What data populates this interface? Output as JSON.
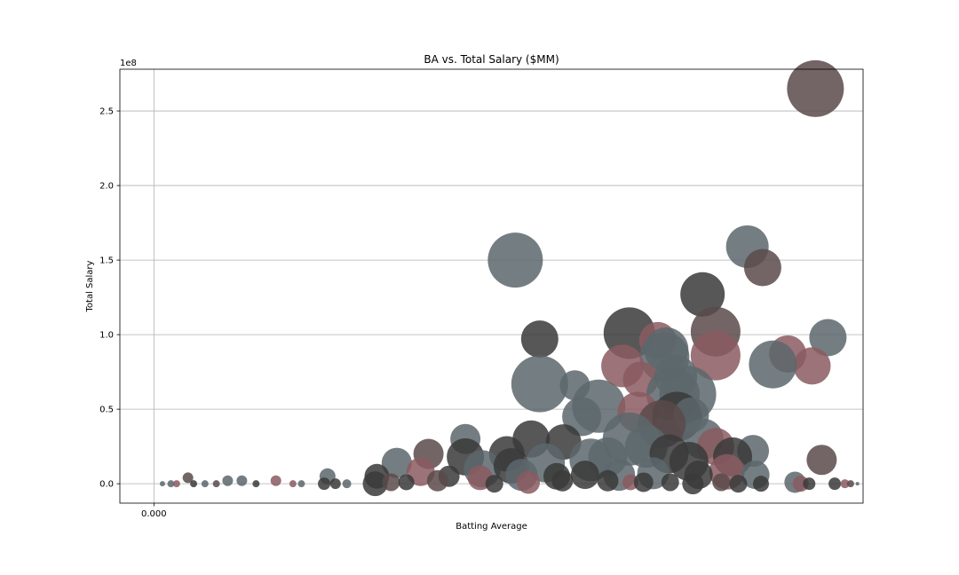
{
  "chart_data": {
    "type": "scatter",
    "title": "BA vs. Total Salary ($MM)",
    "xlabel": "Batting Average",
    "ylabel": "Total Salary",
    "y_offset_label": "1e8",
    "xlim": [
      -0.06,
      1.25
    ],
    "ylim": [
      -13000000,
      278000000
    ],
    "xticks": [
      0.0
    ],
    "xtick_labels": [
      "0.000"
    ],
    "yticks": [
      0,
      50000000,
      100000000,
      150000000,
      200000000,
      250000000
    ],
    "ytick_labels": [
      "0.0",
      "0.5",
      "1.0",
      "1.5",
      "2.0",
      "2.5"
    ],
    "grid": true,
    "palette": {
      "gray": "#5c676c",
      "dark": "#3a3a3a",
      "brown": "#5a4a4a",
      "rose": "#8a5a60"
    },
    "points": [
      {
        "x": 1.166,
        "y": 265000000,
        "s": 32,
        "c": "brown"
      },
      {
        "x": 0.637,
        "y": 150000000,
        "s": 31,
        "c": "gray"
      },
      {
        "x": 1.046,
        "y": 159000000,
        "s": 24,
        "c": "gray"
      },
      {
        "x": 1.073,
        "y": 145000000,
        "s": 21,
        "c": "brown"
      },
      {
        "x": 0.967,
        "y": 127000000,
        "s": 25,
        "c": "dark"
      },
      {
        "x": 0.68,
        "y": 97000000,
        "s": 21,
        "c": "dark"
      },
      {
        "x": 0.838,
        "y": 101000000,
        "s": 29,
        "c": "dark"
      },
      {
        "x": 0.888,
        "y": 96000000,
        "s": 21,
        "c": "rose"
      },
      {
        "x": 0.9,
        "y": 85000000,
        "s": 28,
        "c": "gray"
      },
      {
        "x": 0.903,
        "y": 90000000,
        "s": 25,
        "c": "gray"
      },
      {
        "x": 0.99,
        "y": 102000000,
        "s": 28,
        "c": "brown"
      },
      {
        "x": 0.99,
        "y": 86000000,
        "s": 28,
        "c": "rose"
      },
      {
        "x": 1.188,
        "y": 98000000,
        "s": 21,
        "c": "gray"
      },
      {
        "x": 1.117,
        "y": 87000000,
        "s": 21,
        "c": "rose"
      },
      {
        "x": 1.16,
        "y": 79000000,
        "s": 21,
        "c": "rose"
      },
      {
        "x": 1.091,
        "y": 80000000,
        "s": 27,
        "c": "gray"
      },
      {
        "x": 0.68,
        "y": 67000000,
        "s": 32,
        "c": "gray"
      },
      {
        "x": 0.742,
        "y": 66000000,
        "s": 17,
        "c": "gray"
      },
      {
        "x": 0.826,
        "y": 79000000,
        "s": 24,
        "c": "rose"
      },
      {
        "x": 0.858,
        "y": 70000000,
        "s": 20,
        "c": "rose"
      },
      {
        "x": 0.92,
        "y": 72000000,
        "s": 24,
        "c": "gray"
      },
      {
        "x": 0.915,
        "y": 60000000,
        "s": 30,
        "c": "gray"
      },
      {
        "x": 0.941,
        "y": 60000000,
        "s": 32,
        "c": "gray"
      },
      {
        "x": 0.784,
        "y": 52000000,
        "s": 30,
        "c": "gray"
      },
      {
        "x": 0.754,
        "y": 45000000,
        "s": 22,
        "c": "gray"
      },
      {
        "x": 0.853,
        "y": 48000000,
        "s": 23,
        "c": "rose"
      },
      {
        "x": 0.922,
        "y": 45000000,
        "s": 28,
        "c": "dark"
      },
      {
        "x": 0.947,
        "y": 46000000,
        "s": 20,
        "c": "gray"
      },
      {
        "x": 0.895,
        "y": 40000000,
        "s": 27,
        "c": "brown"
      },
      {
        "x": 0.838,
        "y": 30000000,
        "s": 30,
        "c": "gray"
      },
      {
        "x": 0.868,
        "y": 25000000,
        "s": 24,
        "c": "gray"
      },
      {
        "x": 0.968,
        "y": 30000000,
        "s": 23,
        "c": "gray"
      },
      {
        "x": 0.908,
        "y": 20000000,
        "s": 22,
        "c": "dark"
      },
      {
        "x": 0.99,
        "y": 25000000,
        "s": 21,
        "c": "rose"
      },
      {
        "x": 1.056,
        "y": 22000000,
        "s": 18,
        "c": "gray"
      },
      {
        "x": 1.177,
        "y": 16000000,
        "s": 17,
        "c": "brown"
      },
      {
        "x": 0.665,
        "y": 30000000,
        "s": 21,
        "c": "dark"
      },
      {
        "x": 0.722,
        "y": 28000000,
        "s": 20,
        "c": "dark"
      },
      {
        "x": 0.549,
        "y": 30000000,
        "s": 17,
        "c": "gray"
      },
      {
        "x": 0.549,
        "y": 18000000,
        "s": 21,
        "c": "dark"
      },
      {
        "x": 0.622,
        "y": 20000000,
        "s": 20,
        "c": "dark"
      },
      {
        "x": 0.484,
        "y": 20000000,
        "s": 17,
        "c": "brown"
      },
      {
        "x": 0.428,
        "y": 14000000,
        "s": 17,
        "c": "gray"
      },
      {
        "x": 0.47,
        "y": 8000000,
        "s": 16,
        "c": "rose"
      },
      {
        "x": 0.579,
        "y": 10000000,
        "s": 21,
        "c": "gray"
      },
      {
        "x": 0.63,
        "y": 12000000,
        "s": 20,
        "c": "dark"
      },
      {
        "x": 0.69,
        "y": 14000000,
        "s": 22,
        "c": "gray"
      },
      {
        "x": 0.77,
        "y": 16000000,
        "s": 24,
        "c": "gray"
      },
      {
        "x": 0.8,
        "y": 18000000,
        "s": 22,
        "c": "gray"
      },
      {
        "x": 0.943,
        "y": 15000000,
        "s": 22,
        "c": "dark"
      },
      {
        "x": 1.02,
        "y": 18000000,
        "s": 22,
        "c": "dark"
      },
      {
        "x": 1.01,
        "y": 8000000,
        "s": 20,
        "c": "rose"
      },
      {
        "x": 1.06,
        "y": 6000000,
        "s": 16,
        "c": "gray"
      },
      {
        "x": 0.648,
        "y": 6000000,
        "s": 18,
        "c": "gray"
      },
      {
        "x": 0.71,
        "y": 5000000,
        "s": 15,
        "c": "dark"
      },
      {
        "x": 0.76,
        "y": 6000000,
        "s": 16,
        "c": "dark"
      },
      {
        "x": 0.82,
        "y": 6000000,
        "s": 18,
        "c": "gray"
      },
      {
        "x": 0.88,
        "y": 7000000,
        "s": 18,
        "c": "gray"
      },
      {
        "x": 0.96,
        "y": 6000000,
        "s": 16,
        "c": "dark"
      },
      {
        "x": 0.393,
        "y": 5000000,
        "s": 14,
        "c": "dark"
      },
      {
        "x": 0.52,
        "y": 5000000,
        "s": 12,
        "c": "dark"
      },
      {
        "x": 0.575,
        "y": 4000000,
        "s": 14,
        "c": "rose"
      },
      {
        "x": 0.5,
        "y": 2000000,
        "s": 12,
        "c": "brown"
      },
      {
        "x": 0.39,
        "y": 0,
        "s": 14,
        "c": "dark"
      },
      {
        "x": 0.418,
        "y": 1000000,
        "s": 10,
        "c": "brown"
      },
      {
        "x": 0.445,
        "y": 1000000,
        "s": 9,
        "c": "dark"
      },
      {
        "x": 0.6,
        "y": 0,
        "s": 10,
        "c": "dark"
      },
      {
        "x": 0.66,
        "y": 1000000,
        "s": 13,
        "c": "rose"
      },
      {
        "x": 0.72,
        "y": 2000000,
        "s": 12,
        "c": "dark"
      },
      {
        "x": 0.8,
        "y": 2000000,
        "s": 12,
        "c": "dark"
      },
      {
        "x": 0.84,
        "y": 1000000,
        "s": 9,
        "c": "rose"
      },
      {
        "x": 0.863,
        "y": 1000000,
        "s": 11,
        "c": "dark"
      },
      {
        "x": 0.91,
        "y": 1000000,
        "s": 10,
        "c": "dark"
      },
      {
        "x": 0.95,
        "y": 0,
        "s": 12,
        "c": "dark"
      },
      {
        "x": 1.0,
        "y": 1000000,
        "s": 10,
        "c": "brown"
      },
      {
        "x": 1.03,
        "y": 0,
        "s": 10,
        "c": "dark"
      },
      {
        "x": 1.07,
        "y": 0,
        "s": 9,
        "c": "dark"
      },
      {
        "x": 1.13,
        "y": 1000000,
        "s": 12,
        "c": "gray"
      },
      {
        "x": 1.14,
        "y": 0,
        "s": 9,
        "c": "rose"
      },
      {
        "x": 1.155,
        "y": 0,
        "s": 7,
        "c": "dark"
      },
      {
        "x": 1.2,
        "y": 0,
        "s": 7,
        "c": "dark"
      },
      {
        "x": 1.218,
        "y": 0,
        "s": 5,
        "c": "rose"
      },
      {
        "x": 1.228,
        "y": 0,
        "s": 4,
        "c": "brown"
      },
      {
        "x": 1.24,
        "y": 0,
        "s": 2,
        "c": "gray"
      },
      {
        "x": 0.306,
        "y": 5000000,
        "s": 9,
        "c": "gray"
      },
      {
        "x": 0.3,
        "y": 0,
        "s": 7,
        "c": "dark"
      },
      {
        "x": 0.32,
        "y": 0,
        "s": 6,
        "c": "dark"
      },
      {
        "x": 0.34,
        "y": 0,
        "s": 5,
        "c": "gray"
      },
      {
        "x": 0.215,
        "y": 2000000,
        "s": 6,
        "c": "rose"
      },
      {
        "x": 0.155,
        "y": 2000000,
        "s": 6,
        "c": "gray"
      },
      {
        "x": 0.13,
        "y": 2000000,
        "s": 6,
        "c": "gray"
      },
      {
        "x": 0.06,
        "y": 4000000,
        "s": 6,
        "c": "brown"
      },
      {
        "x": 0.015,
        "y": 0,
        "s": 3,
        "c": "gray"
      },
      {
        "x": 0.03,
        "y": 0,
        "s": 4,
        "c": "gray"
      },
      {
        "x": 0.04,
        "y": 0,
        "s": 4,
        "c": "rose"
      },
      {
        "x": 0.07,
        "y": 0,
        "s": 4,
        "c": "dark"
      },
      {
        "x": 0.09,
        "y": 0,
        "s": 4,
        "c": "gray"
      },
      {
        "x": 0.11,
        "y": 0,
        "s": 4,
        "c": "brown"
      },
      {
        "x": 0.18,
        "y": 0,
        "s": 4,
        "c": "dark"
      },
      {
        "x": 0.245,
        "y": 0,
        "s": 4,
        "c": "rose"
      },
      {
        "x": 0.26,
        "y": 0,
        "s": 4,
        "c": "gray"
      }
    ]
  }
}
